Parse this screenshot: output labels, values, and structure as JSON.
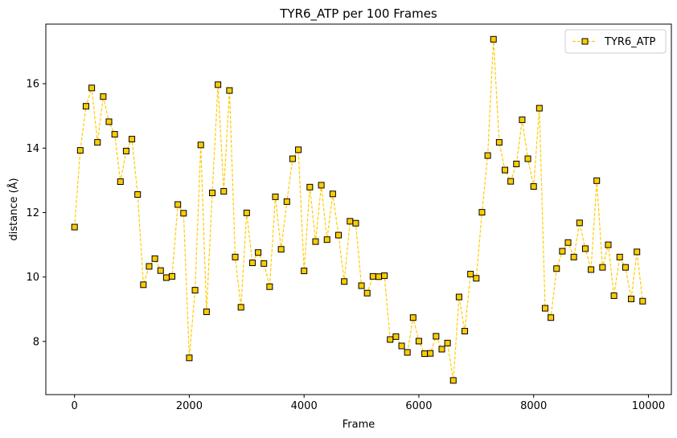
{
  "chart_data": {
    "type": "line",
    "title": "TYR6_ATP per 100 Frames",
    "xlabel": "Frame",
    "ylabel": "distance (Å)",
    "xlim": [
      -500,
      10400
    ],
    "ylim": [
      6.35,
      17.85
    ],
    "xticks": [
      0,
      2000,
      4000,
      6000,
      8000,
      10000
    ],
    "yticks": [
      8,
      10,
      12,
      14,
      16
    ],
    "grid": false,
    "legend_position": "top-right",
    "series": [
      {
        "name": "TYR6_ATP",
        "color": "#ffcc00",
        "marker_edge": "#000000",
        "line_style": "dashed",
        "marker": "square",
        "x": [
          0,
          100,
          200,
          300,
          400,
          500,
          600,
          700,
          800,
          900,
          1000,
          1100,
          1200,
          1300,
          1400,
          1500,
          1600,
          1700,
          1800,
          1900,
          2000,
          2100,
          2200,
          2300,
          2400,
          2500,
          2600,
          2700,
          2800,
          2900,
          3000,
          3100,
          3200,
          3300,
          3400,
          3500,
          3600,
          3700,
          3800,
          3900,
          4000,
          4100,
          4200,
          4300,
          4400,
          4500,
          4600,
          4700,
          4800,
          4900,
          5000,
          5100,
          5200,
          5300,
          5400,
          5500,
          5600,
          5700,
          5800,
          5900,
          6000,
          6100,
          6200,
          6300,
          6400,
          6500,
          6600,
          6700,
          6800,
          6900,
          7000,
          7100,
          7200,
          7300,
          7400,
          7500,
          7600,
          7700,
          7800,
          7900,
          8000,
          8100,
          8200,
          8300,
          8400,
          8500,
          8600,
          8700,
          8800,
          8900,
          9000,
          9100,
          9200,
          9300,
          9400,
          9500,
          9600,
          9700,
          9800,
          9900
        ],
        "y": [
          11.55,
          13.93,
          15.3,
          15.87,
          14.18,
          15.6,
          14.82,
          14.43,
          12.96,
          13.91,
          14.28,
          12.56,
          9.76,
          10.33,
          10.57,
          10.2,
          9.98,
          10.02,
          12.25,
          11.98,
          7.49,
          9.59,
          14.1,
          8.92,
          12.61,
          15.97,
          12.66,
          15.79,
          10.62,
          9.06,
          11.99,
          10.44,
          10.76,
          10.42,
          9.7,
          12.49,
          10.86,
          12.34,
          13.67,
          13.95,
          10.19,
          12.79,
          11.1,
          12.85,
          11.16,
          12.58,
          11.3,
          9.86,
          11.73,
          11.67,
          9.73,
          9.5,
          10.02,
          10.01,
          10.04,
          8.06,
          8.15,
          7.86,
          7.66,
          8.74,
          8.01,
          7.62,
          7.63,
          8.16,
          7.76,
          7.95,
          6.79,
          9.38,
          8.32,
          10.09,
          9.96,
          12.01,
          13.77,
          17.38,
          14.18,
          13.32,
          12.97,
          13.51,
          14.88,
          13.67,
          12.81,
          15.24,
          9.03,
          8.74,
          10.26,
          10.8,
          11.07,
          10.62,
          11.68,
          10.88,
          10.23,
          12.99,
          10.3,
          11.0,
          9.42,
          10.62,
          10.3,
          9.32,
          10.78,
          9.25
        ]
      }
    ]
  }
}
